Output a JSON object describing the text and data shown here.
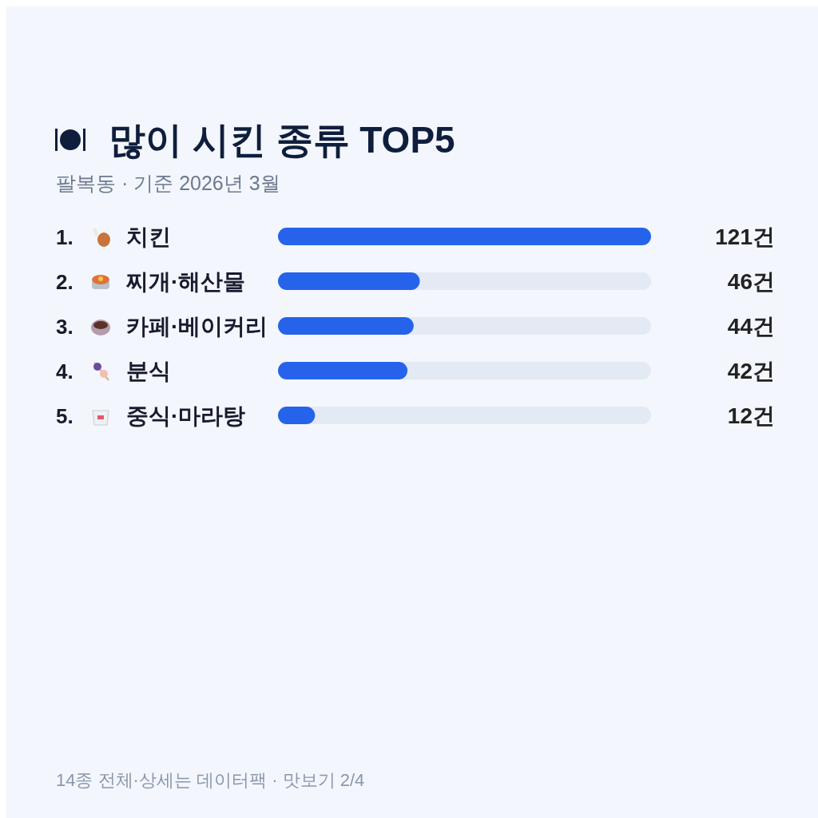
{
  "chart_data": {
    "type": "bar",
    "orientation": "horizontal",
    "title": "많이 시킨 종류 TOP5",
    "subtitle": "팔복동 · 기준 2026년 3월",
    "categories": [
      "1. 치킨",
      "2. 찌개·해산물",
      "3. 카페·베이커리",
      "4. 분식",
      "5. 중식·마라탕"
    ],
    "values": [
      121,
      46,
      44,
      42,
      12
    ],
    "value_labels": [
      "121건",
      "46건",
      "44건",
      "42건",
      "12건"
    ],
    "color": "#2563eb",
    "annotations": [
      "14종 전체·상세는 데이터팩 · 맛보기 2/4"
    ]
  }
}
